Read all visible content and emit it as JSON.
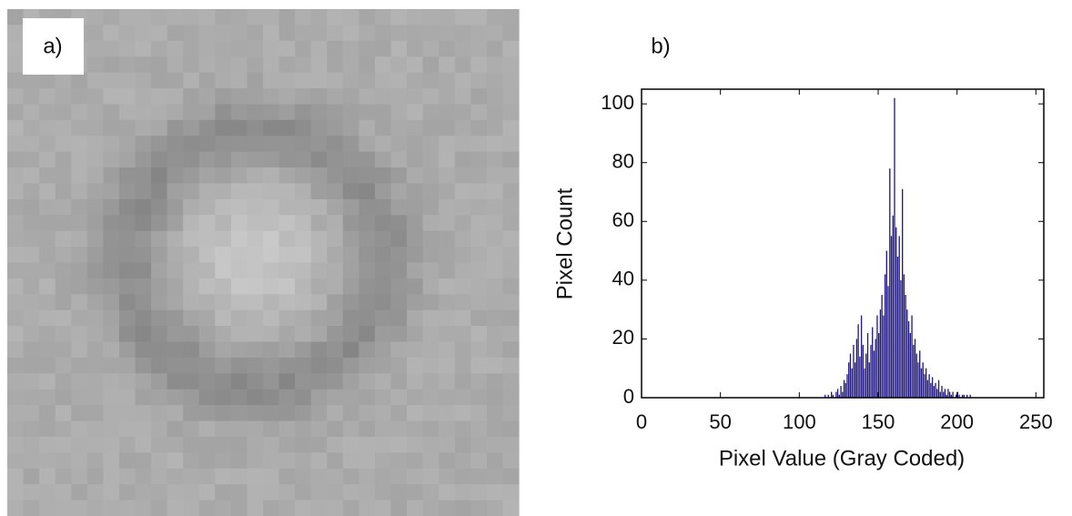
{
  "panel_a": {
    "label": "a)"
  },
  "chart_data": {
    "type": "histogram",
    "panel_label": "b)",
    "xlabel": "Pixel Value (Gray Coded)",
    "ylabel": "Pixel Count",
    "color": "#221a80",
    "bins": [
      115,
      116,
      117,
      118,
      119,
      120,
      121,
      122,
      123,
      124,
      125,
      126,
      127,
      128,
      129,
      130,
      131,
      132,
      133,
      134,
      135,
      136,
      137,
      138,
      139,
      140,
      141,
      142,
      143,
      144,
      145,
      146,
      147,
      148,
      149,
      150,
      151,
      152,
      153,
      154,
      155,
      156,
      157,
      158,
      159,
      160,
      161,
      162,
      163,
      164,
      165,
      166,
      167,
      168,
      169,
      170,
      171,
      172,
      173,
      174,
      175,
      176,
      177,
      178,
      179,
      180,
      181,
      182,
      183,
      184,
      185,
      186,
      187,
      188,
      189,
      190,
      191,
      192,
      193,
      194,
      195,
      196,
      197,
      198,
      199,
      200,
      201,
      202,
      203,
      204,
      205,
      206,
      207,
      208,
      209,
      210
    ],
    "values": [
      0,
      1,
      0,
      1,
      0,
      2,
      1,
      0,
      2,
      3,
      1,
      4,
      2,
      6,
      5,
      8,
      12,
      15,
      10,
      18,
      12,
      20,
      25,
      14,
      28,
      18,
      10,
      15,
      22,
      12,
      18,
      24,
      16,
      20,
      28,
      22,
      30,
      35,
      28,
      42,
      50,
      38,
      78,
      55,
      62,
      102,
      58,
      48,
      55,
      40,
      71,
      42,
      35,
      30,
      26,
      22,
      28,
      18,
      20,
      15,
      12,
      16,
      10,
      12,
      8,
      10,
      6,
      8,
      5,
      7,
      4,
      5,
      3,
      6,
      2,
      4,
      2,
      3,
      1,
      3,
      2,
      1,
      2,
      0,
      1,
      2,
      1,
      0,
      1,
      1,
      0,
      1,
      0,
      1,
      0
    ],
    "xlim": [
      0,
      255
    ],
    "ylim": [
      0,
      105
    ],
    "xticks": [
      0,
      50,
      100,
      150,
      200,
      250
    ],
    "yticks": [
      0,
      20,
      40,
      60,
      80,
      100
    ]
  }
}
